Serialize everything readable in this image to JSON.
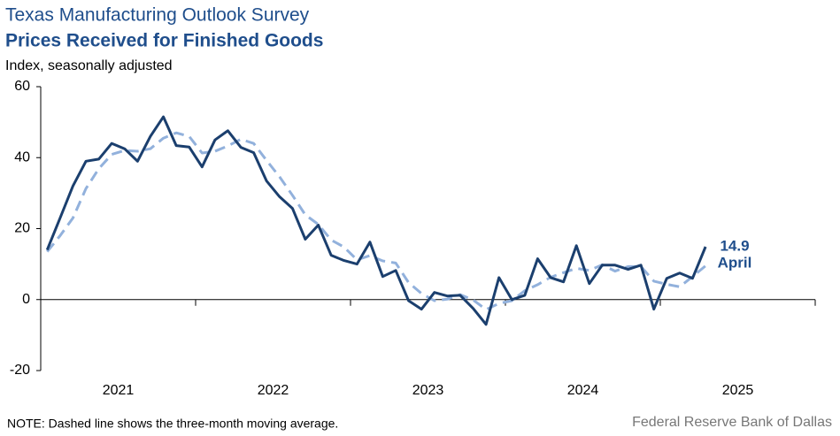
{
  "chart_data": {
    "type": "line",
    "title": "Texas Manufacturing Outlook Survey",
    "subtitle": "Prices Received for Finished Goods",
    "y_label": "Index, seasonally adjusted",
    "note": "NOTE: Dashed line shows the three-month  moving average.",
    "source": "Federal Reserve Bank of Dallas",
    "annotations": [
      "14.9",
      "April"
    ],
    "x": [
      2021.042,
      2021.125,
      2021.208,
      2021.292,
      2021.375,
      2021.458,
      2021.542,
      2021.625,
      2021.708,
      2021.792,
      2021.875,
      2021.958,
      2022.042,
      2022.125,
      2022.208,
      2022.292,
      2022.375,
      2022.458,
      2022.542,
      2022.625,
      2022.708,
      2022.792,
      2022.875,
      2022.958,
      2023.042,
      2023.125,
      2023.208,
      2023.292,
      2023.375,
      2023.458,
      2023.542,
      2023.625,
      2023.708,
      2023.792,
      2023.875,
      2023.958,
      2024.042,
      2024.125,
      2024.208,
      2024.292,
      2024.375,
      2024.458,
      2024.542,
      2024.625,
      2024.708,
      2024.792,
      2024.875,
      2024.958,
      2025.042,
      2025.125,
      2025.208,
      2025.292
    ],
    "series": [
      {
        "name": "Prices Received for Finished Goods",
        "color": "#1b3f6e",
        "dashed": false,
        "values": [
          14,
          23,
          32,
          39,
          39.6,
          44,
          42.5,
          39,
          46,
          51.5,
          43.4,
          43,
          37.4,
          45,
          47.6,
          42.9,
          41.4,
          33.4,
          29,
          25.7,
          17,
          21,
          12.5,
          11,
          10,
          16.2,
          6.5,
          8.2,
          -0.3,
          -2.7,
          2,
          1,
          1.2,
          -2.5,
          -7,
          6.2,
          0,
          1.2,
          11.5,
          6.2,
          5,
          15.2,
          4.5,
          9.7,
          9.7,
          8.5,
          9.7,
          -2.7,
          6,
          7.5,
          6,
          14.9
        ]
      },
      {
        "name": "Three-month moving average",
        "color": "#92b1dc",
        "dashed": true,
        "values": [
          13.5,
          18,
          23,
          31.3,
          36.9,
          40.9,
          42,
          41.8,
          42.5,
          45.5,
          47,
          46,
          41.3,
          41.8,
          43.3,
          45.2,
          44,
          39.2,
          34.6,
          29.4,
          23.9,
          21.2,
          16.8,
          14.8,
          11.2,
          12.4,
          10.9,
          10.3,
          4.8,
          1.7,
          -0.3,
          0.1,
          1.4,
          -0.1,
          -2.8,
          -1.1,
          -0.3,
          2.5,
          4.2,
          6.3,
          7.6,
          8.8,
          8.2,
          9.8,
          8,
          9.3,
          9.3,
          5.2,
          4.3,
          3.6,
          6.5,
          9.5
        ]
      }
    ],
    "xlim": [
      2021,
      2026
    ],
    "xticks": [
      2021,
      2022,
      2023,
      2024,
      2025,
      2026
    ],
    "year_labels": [
      2021,
      2022,
      2023,
      2024,
      2025
    ],
    "ylim": [
      -20,
      60
    ],
    "yticks": [
      -20,
      0,
      20,
      40,
      60
    ],
    "grid": false
  }
}
